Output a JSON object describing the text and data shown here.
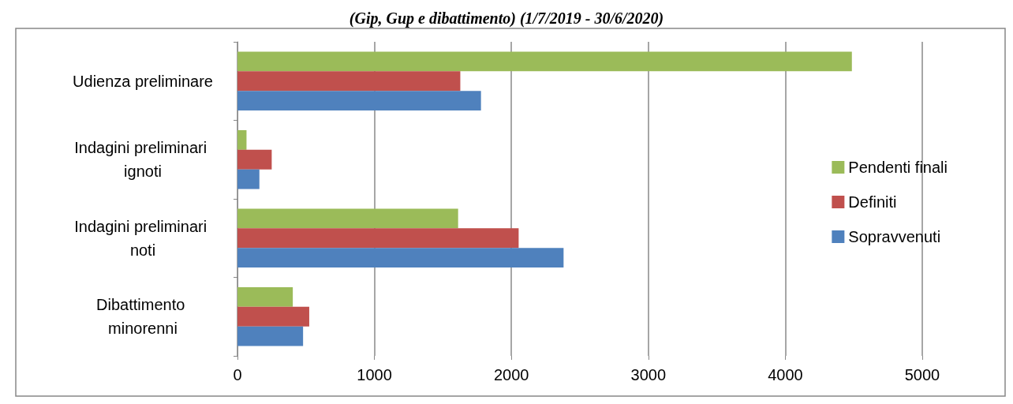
{
  "chart_data": {
    "type": "bar",
    "orientation": "horizontal",
    "title": "(Gip, Gup e dibattimento) (1/7/2019 - 30/6/2020)",
    "categories": [
      "Udienza preliminare",
      "Indagini preliminari ignoti",
      "Indagini preliminari noti",
      "Dibattimento minorenni"
    ],
    "series": [
      {
        "name": "Pendenti finali",
        "color": "#9bbb59",
        "values": [
          4486,
          66,
          1611,
          404
        ]
      },
      {
        "name": "Definiti",
        "color": "#c0504d",
        "values": [
          1627,
          250,
          2053,
          524
        ]
      },
      {
        "name": "Sopravvenuti",
        "color": "#4f81bd",
        "values": [
          1778,
          160,
          2381,
          479
        ]
      }
    ],
    "xlim": [
      0,
      5000
    ],
    "xticks": [
      0,
      1000,
      2000,
      3000,
      4000,
      5000
    ],
    "grid": "x",
    "legend": "right"
  }
}
